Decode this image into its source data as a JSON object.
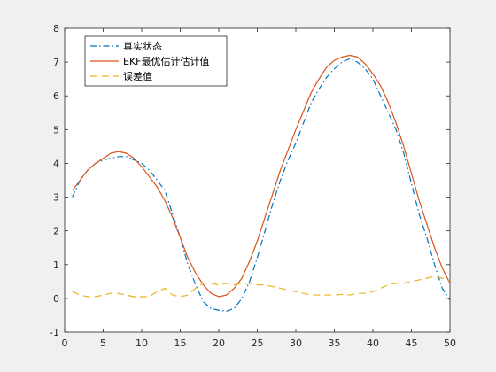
{
  "chart_data": {
    "type": "line",
    "xlim": [
      0,
      50
    ],
    "ylim": [
      -1,
      8
    ],
    "x_ticks": [
      0,
      5,
      10,
      15,
      20,
      25,
      30,
      35,
      40,
      45,
      50
    ],
    "y_ticks": [
      -1,
      0,
      1,
      2,
      3,
      4,
      5,
      6,
      7,
      8
    ],
    "grid": false,
    "legend_position": "top-left",
    "series": [
      {
        "name": "真实状态",
        "color": "#0072BD",
        "style": "dash-dot",
        "x": [
          1,
          2,
          3,
          4,
          5,
          6,
          7,
          8,
          9,
          10,
          11,
          12,
          13,
          14,
          15,
          16,
          17,
          18,
          19,
          20,
          21,
          22,
          23,
          24,
          25,
          26,
          27,
          28,
          29,
          30,
          31,
          32,
          33,
          34,
          35,
          36,
          37,
          38,
          39,
          40,
          41,
          42,
          43,
          44,
          45,
          46,
          47,
          48,
          49,
          50
        ],
        "y": [
          3.0,
          3.5,
          3.8,
          4.0,
          4.1,
          4.15,
          4.2,
          4.2,
          4.1,
          4.0,
          3.8,
          3.5,
          3.2,
          2.5,
          1.8,
          1.0,
          0.4,
          -0.1,
          -0.3,
          -0.35,
          -0.38,
          -0.3,
          0.0,
          0.5,
          1.2,
          2.0,
          2.8,
          3.5,
          4.1,
          4.6,
          5.2,
          5.8,
          6.2,
          6.55,
          6.8,
          7.0,
          7.1,
          7.0,
          6.8,
          6.5,
          6.0,
          5.5,
          5.0,
          4.3,
          3.4,
          2.5,
          1.8,
          1.0,
          0.3,
          -0.05
        ]
      },
      {
        "name": "EKF最优估计估计值",
        "color": "#D95319",
        "style": "solid",
        "x": [
          1,
          2,
          3,
          4,
          5,
          6,
          7,
          8,
          9,
          10,
          11,
          12,
          13,
          14,
          15,
          16,
          17,
          18,
          19,
          20,
          21,
          22,
          23,
          24,
          25,
          26,
          27,
          28,
          29,
          30,
          31,
          32,
          33,
          34,
          35,
          36,
          37,
          38,
          39,
          40,
          41,
          42,
          43,
          44,
          45,
          46,
          47,
          48,
          49,
          50
        ],
        "y": [
          3.2,
          3.5,
          3.8,
          4.0,
          4.15,
          4.3,
          4.35,
          4.3,
          4.15,
          3.9,
          3.6,
          3.3,
          2.9,
          2.4,
          1.8,
          1.2,
          0.75,
          0.4,
          0.15,
          0.05,
          0.1,
          0.3,
          0.6,
          1.1,
          1.7,
          2.4,
          3.1,
          3.8,
          4.4,
          5.0,
          5.55,
          6.1,
          6.5,
          6.85,
          7.05,
          7.15,
          7.2,
          7.15,
          6.95,
          6.65,
          6.3,
          5.8,
          5.2,
          4.5,
          3.7,
          2.9,
          2.2,
          1.5,
          0.9,
          0.45
        ]
      },
      {
        "name": "误差值",
        "color": "#EDB120",
        "style": "dashed",
        "x": [
          1,
          2,
          3,
          4,
          5,
          6,
          7,
          8,
          9,
          10,
          11,
          12,
          13,
          14,
          15,
          16,
          17,
          18,
          19,
          20,
          21,
          22,
          23,
          24,
          25,
          26,
          27,
          28,
          29,
          30,
          31,
          32,
          33,
          34,
          35,
          36,
          37,
          38,
          39,
          40,
          41,
          42,
          43,
          44,
          45,
          46,
          47,
          48,
          49,
          50
        ],
        "y": [
          0.2,
          0.1,
          0.05,
          0.05,
          0.1,
          0.15,
          0.15,
          0.1,
          0.05,
          0.05,
          0.05,
          0.2,
          0.3,
          0.1,
          0.05,
          0.1,
          0.3,
          0.45,
          0.45,
          0.4,
          0.45,
          0.4,
          0.45,
          0.45,
          0.4,
          0.4,
          0.35,
          0.3,
          0.25,
          0.2,
          0.15,
          0.1,
          0.1,
          0.1,
          0.1,
          0.12,
          0.1,
          0.15,
          0.15,
          0.2,
          0.3,
          0.4,
          0.45,
          0.45,
          0.5,
          0.55,
          0.6,
          0.65,
          0.6,
          0.5
        ]
      }
    ]
  }
}
